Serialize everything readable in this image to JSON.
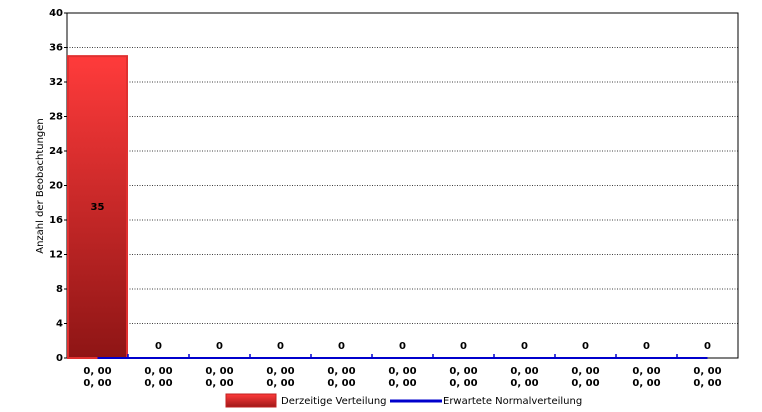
{
  "chart_data": {
    "type": "bar",
    "y_label": "Anzahl der Beobachtungen",
    "categories": [
      [
        "0, 00",
        "0, 00"
      ],
      [
        "0, 00",
        "0, 00"
      ],
      [
        "0, 00",
        "0, 00"
      ],
      [
        "0, 00",
        "0, 00"
      ],
      [
        "0, 00",
        "0, 00"
      ],
      [
        "0, 00",
        "0, 00"
      ],
      [
        "0, 00",
        "0, 00"
      ],
      [
        "0, 00",
        "0, 00"
      ],
      [
        "0, 00",
        "0, 00"
      ],
      [
        "0, 00",
        "0, 00"
      ],
      [
        "0, 00",
        "0, 00"
      ]
    ],
    "series": [
      {
        "name": "Derzeitige Verteilung",
        "type": "bar",
        "color": "#e03030",
        "values": [
          35,
          0,
          0,
          0,
          0,
          0,
          0,
          0,
          0,
          0,
          0
        ]
      },
      {
        "name": "Erwartete Normalverteilung",
        "type": "line",
        "color": "#0000cc",
        "values": [
          0,
          0,
          0,
          0,
          0,
          0,
          0,
          0,
          0,
          0,
          0
        ]
      }
    ],
    "ylim": [
      0,
      40
    ],
    "yticks": [
      0,
      4,
      8,
      12,
      16,
      20,
      24,
      28,
      32,
      36,
      40
    ],
    "grid": true
  }
}
